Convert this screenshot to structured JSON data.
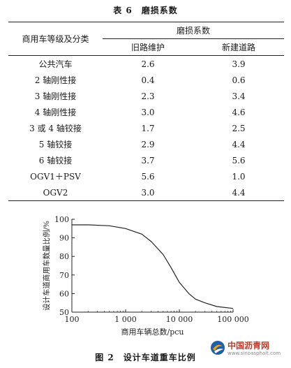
{
  "table": {
    "title": "表 6　磨损系数",
    "header": {
      "category": "商用车等级及分类",
      "group": "磨损系数",
      "old_road": "旧路维护",
      "new_road": "新建道路"
    },
    "rows": [
      {
        "category": "公共汽车",
        "old": "2.6",
        "new": "3.9"
      },
      {
        "category": "2 轴刚性接",
        "old": "0.4",
        "new": "0.6"
      },
      {
        "category": "3 轴刚性接",
        "old": "2.3",
        "new": "3.4"
      },
      {
        "category": "4 轴刚性接",
        "old": "3.0",
        "new": "4.6"
      },
      {
        "category": "3 或 4 轴铰接",
        "old": "1.7",
        "new": "2.5"
      },
      {
        "category": "5 轴铰接",
        "old": "2.9",
        "new": "4.4"
      },
      {
        "category": "6 轴铰接",
        "old": "3.7",
        "new": "5.6"
      },
      {
        "category": "OGV1＋PSV",
        "old": "5.6",
        "new": "1.0"
      },
      {
        "category": "OGV2",
        "old": "3.0",
        "new": "4.4"
      }
    ]
  },
  "chart_data": {
    "type": "line",
    "title": "",
    "xlabel": "商用车辆总数/pcu",
    "ylabel": "设计车道商用车数量比例/%",
    "x_scale": "log",
    "xlim": [
      100,
      100000
    ],
    "ylim": [
      50,
      100
    ],
    "x_ticks": [
      100,
      1000,
      10000,
      100000
    ],
    "x_tick_labels": [
      "100",
      "1 000",
      "10 000",
      "100 000"
    ],
    "y_ticks": [
      50,
      60,
      70,
      80,
      90,
      100
    ],
    "y_tick_labels": [
      "50",
      "60",
      "70",
      "80",
      "90",
      "100"
    ],
    "grid": false,
    "series": [
      {
        "x": [
          100,
          200,
          500,
          1000,
          2000,
          3000,
          5000,
          7000,
          10000,
          15000,
          20000,
          30000,
          50000,
          100000
        ],
        "y": [
          97,
          97,
          96.5,
          95,
          92,
          88,
          81,
          74,
          66,
          60,
          57,
          55,
          53,
          52
        ]
      }
    ],
    "line_color": "#222222"
  },
  "figure": {
    "caption": "图 2　设计车道重车比例"
  },
  "watermark": {
    "text": "中国沥青网",
    "url": "www.sinoasphalt.com"
  }
}
